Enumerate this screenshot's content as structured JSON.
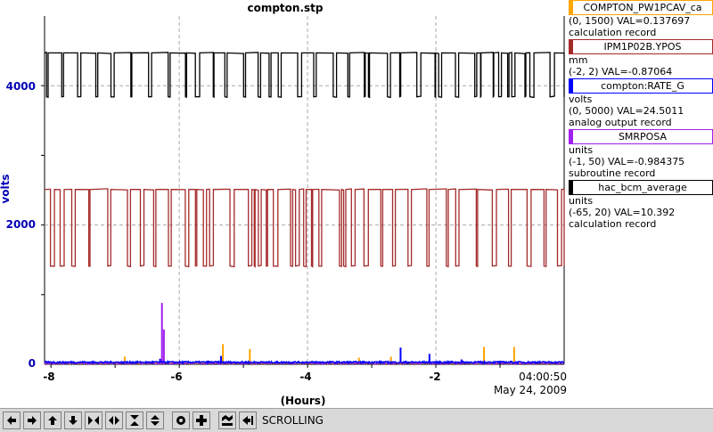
{
  "chart_data": {
    "type": "line",
    "title": "compton.stp",
    "ylabel": "volts",
    "xlabel": "(Hours)",
    "time_readout": "04:00:50",
    "date_readout": "May 24, 2009",
    "x_ticks": [
      "-8",
      "-6",
      "-4",
      "-2"
    ],
    "y_ticks": [
      "0",
      "2000",
      "4000"
    ],
    "xlim": [
      -8.1,
      -0.0
    ],
    "ylim": [
      0,
      5000
    ],
    "grid": true,
    "legend_position": "right",
    "series": [
      {
        "name": "COMPTON_PW1PCAV_ca",
        "color": "#ffa500",
        "range": "(0, 1500) VAL=0.137697",
        "record": "calculation record",
        "units": "",
        "baseline": 20,
        "spikes": [
          [
            -6.85,
            110
          ],
          [
            -5.32,
            290
          ],
          [
            -4.9,
            220
          ],
          [
            -3.2,
            95
          ],
          [
            -2.7,
            110
          ],
          [
            -1.25,
            250
          ],
          [
            -0.78,
            250
          ]
        ]
      },
      {
        "name": "IPM1P02B.YPOS",
        "color": "#a52a2a",
        "range": "(-2, 2) VAL=-0.87064",
        "record": "",
        "units": "mm",
        "low": 1410,
        "high": 2510
      },
      {
        "name": "compton:RATE_G",
        "color": "#0000ff",
        "range": "(0, 5000) VAL=24.5011",
        "record": "analog output record",
        "units": "volts",
        "baseline": 30,
        "spikes": [
          [
            -6.3,
            80
          ],
          [
            -5.35,
            120
          ],
          [
            -2.55,
            240
          ],
          [
            -2.1,
            150
          ],
          [
            -1.6,
            70
          ]
        ]
      },
      {
        "name": "SMRPOSA",
        "color": "#a020f0",
        "range": "(-1, 50) VAL=-0.984375",
        "record": "subroutine record",
        "units": "units",
        "baseline": 15,
        "spikes": [
          [
            -6.27,
            880
          ],
          [
            -6.24,
            500
          ]
        ]
      },
      {
        "name": "hac_bcm_average",
        "color": "#000000",
        "range": "(-65, 20) VAL=10.392",
        "record": "calculation record",
        "units": "units",
        "low": 3840,
        "high": 4470
      }
    ]
  },
  "toolbar": {
    "status_text": "SCROLLING",
    "buttons": [
      "pan-left",
      "pan-right",
      "pan-up",
      "pan-down",
      "zoom-in-x",
      "zoom-out-x",
      "zoom-in-y",
      "zoom-out-y",
      "stop",
      "add",
      "auto-scale",
      "go-end"
    ]
  }
}
